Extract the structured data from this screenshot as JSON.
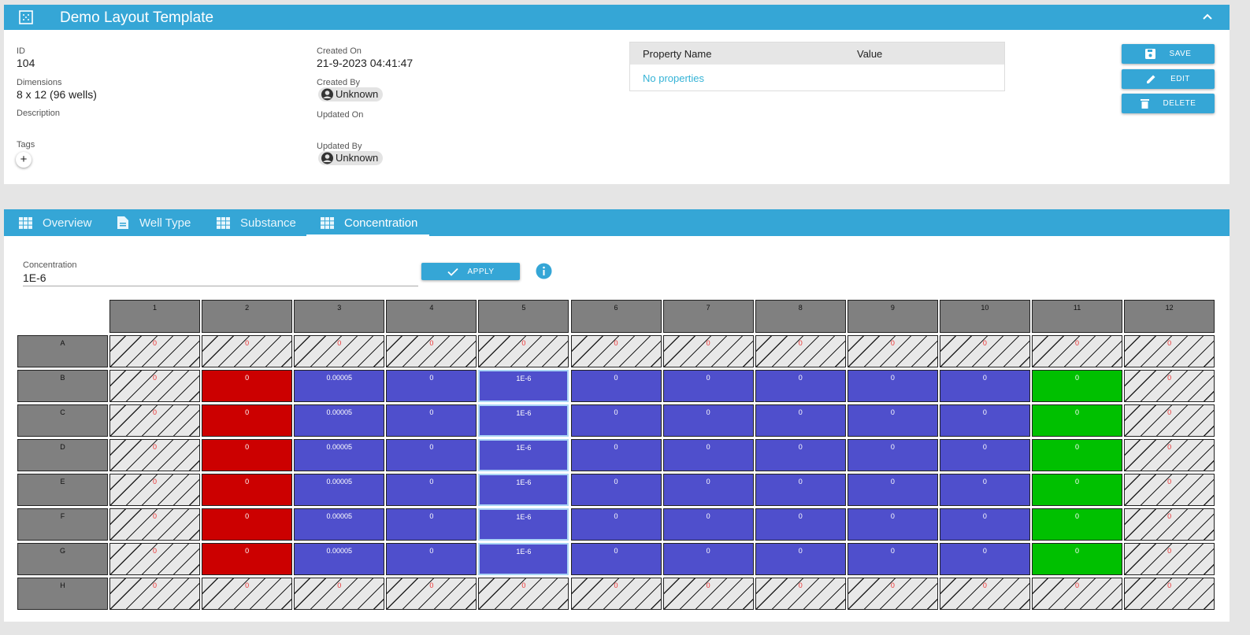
{
  "header": {
    "title": "Demo Layout Template"
  },
  "details": {
    "id_label": "ID",
    "id": "104",
    "dimensions_label": "Dimensions",
    "dimensions": "8 x 12 (96 wells)",
    "description_label": "Description",
    "tags_label": "Tags",
    "created_on_label": "Created On",
    "created_on": "21-9-2023 04:41:47",
    "created_by_label": "Created By",
    "created_by": "Unknown",
    "updated_on_label": "Updated On",
    "updated_by_label": "Updated By",
    "updated_by": "Unknown"
  },
  "properties": {
    "columns": [
      "Property Name",
      "Value"
    ],
    "empty": "No properties"
  },
  "buttons": [
    "SAVE",
    "EDIT",
    "DELETE"
  ],
  "tabs": {
    "items": [
      "Overview",
      "Well Type",
      "Substance",
      "Concentration"
    ],
    "active": 3
  },
  "concentration": {
    "label": "Concentration",
    "value": "1E-6",
    "apply": "APPLY"
  },
  "plate": {
    "columns": [
      "1",
      "2",
      "3",
      "4",
      "5",
      "6",
      "7",
      "8",
      "9",
      "10",
      "11",
      "12"
    ],
    "rows": [
      {
        "label": "A",
        "wells": [
          "0",
          "0",
          "0",
          "0",
          "0",
          "0",
          "0",
          "0",
          "0",
          "0",
          "0",
          "0"
        ],
        "colors": [
          "hatched",
          "hatched",
          "hatched",
          "hatched",
          "hatched",
          "hatched",
          "hatched",
          "hatched",
          "hatched",
          "hatched",
          "hatched",
          "hatched"
        ]
      },
      {
        "label": "B",
        "wells": [
          "0",
          "0",
          "0.00005",
          "0",
          "1E-6",
          "0",
          "0",
          "0",
          "0",
          "0",
          "0",
          "0"
        ],
        "colors": [
          "hatched",
          "#cc0000",
          "#4f4fcc",
          "#4f4fcc",
          "#4f4fcc",
          "#4f4fcc",
          "#4f4fcc",
          "#4f4fcc",
          "#4f4fcc",
          "#4f4fcc",
          "#00c000",
          "hatched"
        ],
        "selected": 4
      },
      {
        "label": "C",
        "wells": [
          "0",
          "0",
          "0.00005",
          "0",
          "1E-6",
          "0",
          "0",
          "0",
          "0",
          "0",
          "0",
          "0"
        ],
        "colors": [
          "hatched",
          "#cc0000",
          "#4f4fcc",
          "#4f4fcc",
          "#4f4fcc",
          "#4f4fcc",
          "#4f4fcc",
          "#4f4fcc",
          "#4f4fcc",
          "#4f4fcc",
          "#00c000",
          "hatched"
        ],
        "selected": 4
      },
      {
        "label": "D",
        "wells": [
          "0",
          "0",
          "0.00005",
          "0",
          "1E-6",
          "0",
          "0",
          "0",
          "0",
          "0",
          "0",
          "0"
        ],
        "colors": [
          "hatched",
          "#cc0000",
          "#4f4fcc",
          "#4f4fcc",
          "#4f4fcc",
          "#4f4fcc",
          "#4f4fcc",
          "#4f4fcc",
          "#4f4fcc",
          "#4f4fcc",
          "#00c000",
          "hatched"
        ],
        "selected": 4
      },
      {
        "label": "E",
        "wells": [
          "0",
          "0",
          "0.00005",
          "0",
          "1E-6",
          "0",
          "0",
          "0",
          "0",
          "0",
          "0",
          "0"
        ],
        "colors": [
          "hatched",
          "#cc0000",
          "#4f4fcc",
          "#4f4fcc",
          "#4f4fcc",
          "#4f4fcc",
          "#4f4fcc",
          "#4f4fcc",
          "#4f4fcc",
          "#4f4fcc",
          "#00c000",
          "hatched"
        ],
        "selected": 4
      },
      {
        "label": "F",
        "wells": [
          "0",
          "0",
          "0.00005",
          "0",
          "1E-6",
          "0",
          "0",
          "0",
          "0",
          "0",
          "0",
          "0"
        ],
        "colors": [
          "hatched",
          "#cc0000",
          "#4f4fcc",
          "#4f4fcc",
          "#4f4fcc",
          "#4f4fcc",
          "#4f4fcc",
          "#4f4fcc",
          "#4f4fcc",
          "#4f4fcc",
          "#00c000",
          "hatched"
        ],
        "selected": 4
      },
      {
        "label": "G",
        "wells": [
          "0",
          "0",
          "0.00005",
          "0",
          "1E-6",
          "0",
          "0",
          "0",
          "0",
          "0",
          "0",
          "0"
        ],
        "colors": [
          "hatched",
          "#cc0000",
          "#4f4fcc",
          "#4f4fcc",
          "#4f4fcc",
          "#4f4fcc",
          "#4f4fcc",
          "#4f4fcc",
          "#4f4fcc",
          "#4f4fcc",
          "#00c000",
          "hatched"
        ],
        "selected": 4
      },
      {
        "label": "H",
        "wells": [
          "0",
          "0",
          "0",
          "0",
          "0",
          "0",
          "0",
          "0",
          "0",
          "0",
          "0",
          "0"
        ],
        "colors": [
          "hatched",
          "hatched",
          "hatched",
          "hatched",
          "hatched",
          "hatched",
          "hatched",
          "hatched",
          "hatched",
          "hatched",
          "hatched",
          "hatched"
        ]
      }
    ]
  }
}
